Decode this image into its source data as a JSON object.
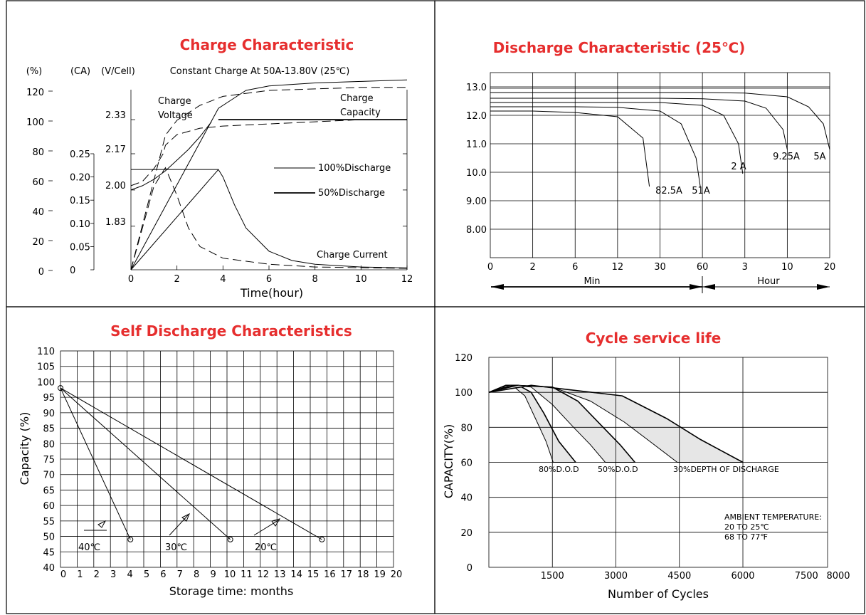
{
  "chart_data": [
    {
      "type": "line",
      "title": "Charge Characteristic",
      "subtitle": "Constant Charge At 50A-13.80V  (25℃)",
      "xlabel": "Time(hour)",
      "axis_units": [
        "(%)",
        "(CA)",
        "(V/Cell)"
      ],
      "x_ticks": [
        "0",
        "2",
        "4",
        "6",
        "8",
        "10",
        "12"
      ],
      "y_percent_ticks": [
        "120",
        "100",
        "80",
        "60",
        "40",
        "20",
        "0"
      ],
      "y_ca_ticks": [
        "0.25",
        "0.20",
        "0.15",
        "0.10",
        "0.05",
        "0"
      ],
      "y_volt_ticks": [
        "2.33",
        "2.17",
        "2.00",
        "1.83"
      ],
      "xlim": [
        0,
        12
      ],
      "ylim_percent": [
        0,
        120
      ],
      "ylim_volt": [
        1.67,
        2.33
      ],
      "legend": [
        "100%Discharge",
        "50%Discharge"
      ],
      "annotations": [
        "Charge",
        "Voltage",
        "Charge",
        "Capacity",
        "Charge Current"
      ],
      "series": [
        {
          "kind": "voltage",
          "style": "100%",
          "x": [
            0,
            0.5,
            1,
            1.5,
            2,
            2.5,
            3,
            3.5
          ],
          "volt": [
            2.0,
            2.02,
            2.05,
            2.09,
            2.14,
            2.19,
            2.25,
            2.32
          ]
        },
        {
          "kind": "voltage",
          "style": "50%",
          "x": [
            0,
            0.5,
            1,
            1.4,
            1.5,
            2,
            3,
            4,
            6,
            8,
            10,
            12
          ],
          "volt": [
            2.02,
            2.04,
            2.1,
            2.17,
            2.21,
            2.26,
            2.29,
            2.3,
            2.31,
            2.32,
            2.33,
            2.33
          ]
        },
        {
          "kind": "current",
          "style": "100%",
          "x": [
            0,
            3.8,
            4,
            4.5,
            5,
            6,
            7,
            8,
            10,
            12
          ],
          "ca": [
            0,
            0.216,
            0.2,
            0.14,
            0.09,
            0.04,
            0.02,
            0.012,
            0.006,
            0.004
          ]
        },
        {
          "kind": "current",
          "style": "50%",
          "x": [
            0,
            1,
            1.5,
            2,
            2.5,
            3,
            4,
            6,
            8,
            12
          ],
          "ca": [
            0,
            0.18,
            0.22,
            0.16,
            0.09,
            0.05,
            0.025,
            0.012,
            0.006,
            0.003
          ]
        },
        {
          "kind": "capacity",
          "style": "100%",
          "x": [
            0,
            3.8,
            4.5,
            5,
            6,
            7,
            8,
            10,
            12
          ],
          "pct": [
            0,
            108,
            115,
            120,
            123,
            124,
            125,
            126,
            127
          ]
        },
        {
          "kind": "capacity",
          "style": "50%",
          "x": [
            0,
            1.5,
            2,
            3,
            4,
            6,
            8,
            10,
            12
          ],
          "pct": [
            0,
            90,
            100,
            110,
            116,
            120,
            121,
            122,
            122
          ]
        }
      ]
    },
    {
      "type": "line",
      "title": "Discharge Characteristic  (25℃)",
      "x_ticks": [
        "0",
        "2",
        "6",
        "12",
        "30",
        "60",
        "3",
        "10",
        "20"
      ],
      "y_ticks": [
        "13.0",
        "12.0",
        "11.0",
        "10.0",
        "9.00",
        "8.00"
      ],
      "ylim": [
        7.0,
        13.5
      ],
      "x_range_labels": [
        "Min",
        "Hour"
      ],
      "series": [
        {
          "name": "82.5A",
          "pos": [
            0,
            1,
            2,
            3,
            3.6,
            3.75
          ],
          "volt": [
            12.15,
            12.15,
            12.1,
            11.95,
            11.2,
            9.5
          ]
        },
        {
          "name": "51A",
          "pos": [
            0,
            2,
            3,
            4,
            4.5,
            4.85,
            4.95
          ],
          "volt": [
            12.3,
            12.3,
            12.28,
            12.15,
            11.7,
            10.5,
            9.5
          ]
        },
        {
          "name": "2 A",
          "pos": [
            0,
            3,
            4,
            5,
            5.5,
            5.85,
            5.95
          ],
          "volt": [
            12.45,
            12.45,
            12.45,
            12.35,
            12.0,
            11.0,
            9.95
          ]
        },
        {
          "name": "9.25A",
          "pos": [
            0,
            4,
            5,
            6,
            6.5,
            6.9,
            7.0
          ],
          "volt": [
            12.6,
            12.6,
            12.58,
            12.5,
            12.25,
            11.5,
            10.8
          ]
        },
        {
          "name": "5A",
          "pos": [
            0,
            5,
            6,
            7,
            7.5,
            7.85,
            8.0
          ],
          "volt": [
            12.8,
            12.8,
            12.78,
            12.65,
            12.3,
            11.7,
            10.8
          ]
        }
      ]
    },
    {
      "type": "line",
      "title": "Self Discharge Characteristics",
      "xlabel": "Storage time: months",
      "ylabel": "Capacity (%)",
      "x_ticks": [
        "0",
        "1",
        "2",
        "3",
        "4",
        "5",
        "6",
        "7",
        "8",
        "9",
        "10",
        "11",
        "12",
        "13",
        "14",
        "15",
        "16",
        "17",
        "18",
        "19",
        "20"
      ],
      "y_ticks": [
        "110",
        "105",
        "100",
        "95",
        "90",
        "85",
        "80",
        "75",
        "70",
        "65",
        "60",
        "55",
        "50",
        "45",
        "40"
      ],
      "xlim": [
        0,
        20
      ],
      "ylim": [
        40,
        110
      ],
      "series": [
        {
          "name": "40℃",
          "x": [
            0,
            4.2
          ],
          "y": [
            98,
            49
          ]
        },
        {
          "name": "30℃",
          "x": [
            0,
            10.2
          ],
          "y": [
            98,
            49
          ]
        },
        {
          "name": "20℃",
          "x": [
            0,
            15.7
          ],
          "y": [
            98,
            49
          ]
        }
      ]
    },
    {
      "type": "area",
      "title": "Cycle service life",
      "xlabel": "Number of Cycles",
      "ylabel": "CAPACITY(%)",
      "x_ticks": [
        "1500",
        "3000",
        "4500",
        "6000",
        "7500",
        "8000"
      ],
      "y_ticks": [
        "120",
        "100",
        "80",
        "60",
        "40",
        "20",
        "0"
      ],
      "ylim": [
        0,
        120
      ],
      "labels": [
        "80%D.O.D",
        "50%D.O.D",
        "30%DEPTH OF DISCHARGE"
      ],
      "note": [
        "AMBIENT TEMPERATURE:",
        "20 TO 25℃",
        "68 TO 77℉"
      ],
      "series": [
        {
          "name": "80%D.O.D",
          "upper": [
            [
              0,
              100
            ],
            [
              400,
              104
            ],
            [
              700,
              104
            ],
            [
              1000,
              100
            ],
            [
              1300,
              88
            ],
            [
              1650,
              72
            ],
            [
              2050,
              60
            ]
          ],
          "lower": [
            [
              0,
              100
            ],
            [
              300,
              103
            ],
            [
              600,
              103
            ],
            [
              850,
              98
            ],
            [
              1100,
              85
            ],
            [
              1350,
              72
            ],
            [
              1520,
              60
            ]
          ]
        },
        {
          "name": "50%D.O.D",
          "upper": [
            [
              0,
              100
            ],
            [
              600,
              104
            ],
            [
              1500,
              103
            ],
            [
              2100,
              95
            ],
            [
              2700,
              80
            ],
            [
              3100,
              70
            ],
            [
              3450,
              60
            ]
          ],
          "lower": [
            [
              0,
              100
            ],
            [
              500,
              104
            ],
            [
              1000,
              103
            ],
            [
              1500,
              93
            ],
            [
              2000,
              80
            ],
            [
              2400,
              70
            ],
            [
              2750,
              60
            ]
          ]
        },
        {
          "name": "30%DEPTH OF DISCHARGE",
          "upper": [
            [
              0,
              100
            ],
            [
              1000,
              104
            ],
            [
              3150,
              98
            ],
            [
              4200,
              85
            ],
            [
              5000,
              73
            ],
            [
              6000,
              60
            ]
          ],
          "lower": [
            [
              0,
              100
            ],
            [
              700,
              104
            ],
            [
              1500,
              103
            ],
            [
              2400,
              95
            ],
            [
              3200,
              83
            ],
            [
              3800,
              72
            ],
            [
              4450,
              60
            ]
          ]
        }
      ]
    }
  ]
}
